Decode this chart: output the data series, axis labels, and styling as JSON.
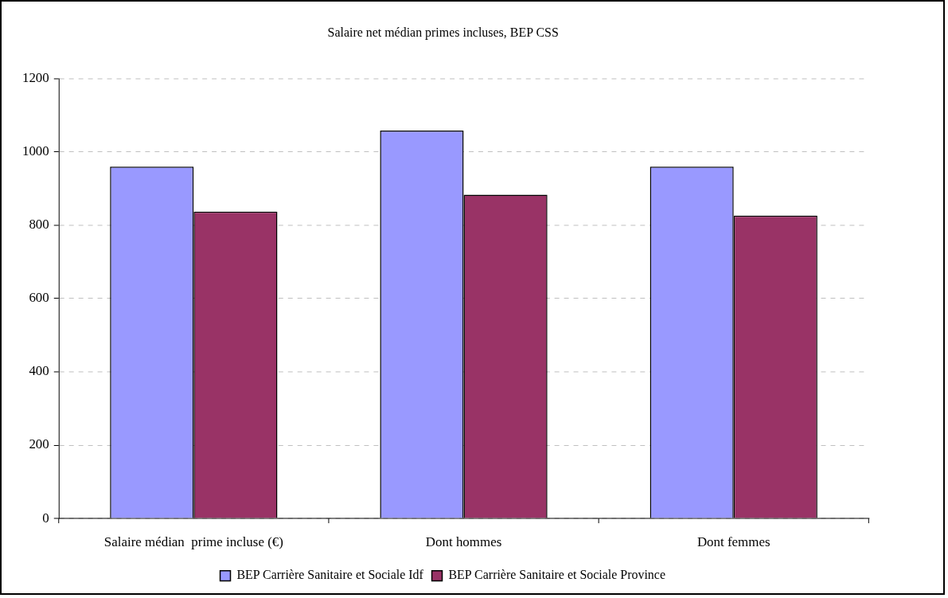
{
  "chart_data": {
    "type": "bar",
    "title": "Salaire net médian primes incluses, BEP CSS",
    "categories": [
      "Salaire médian  prime incluse (€)",
      "Dont hommes",
      "Dont femmes"
    ],
    "series": [
      {
        "name": "BEP Carrière Sanitaire et Sociale Idf",
        "color": "#9999ff",
        "values": [
          960,
          1058,
          960
        ]
      },
      {
        "name": "BEP Carrière Sanitaire et Sociale Province",
        "color": "#993366",
        "values": [
          837,
          883,
          826
        ]
      }
    ],
    "ylim": [
      0,
      1200
    ],
    "yticks": [
      0,
      200,
      400,
      600,
      800,
      1000,
      1200
    ],
    "grid": "y",
    "legend": "bottom"
  }
}
